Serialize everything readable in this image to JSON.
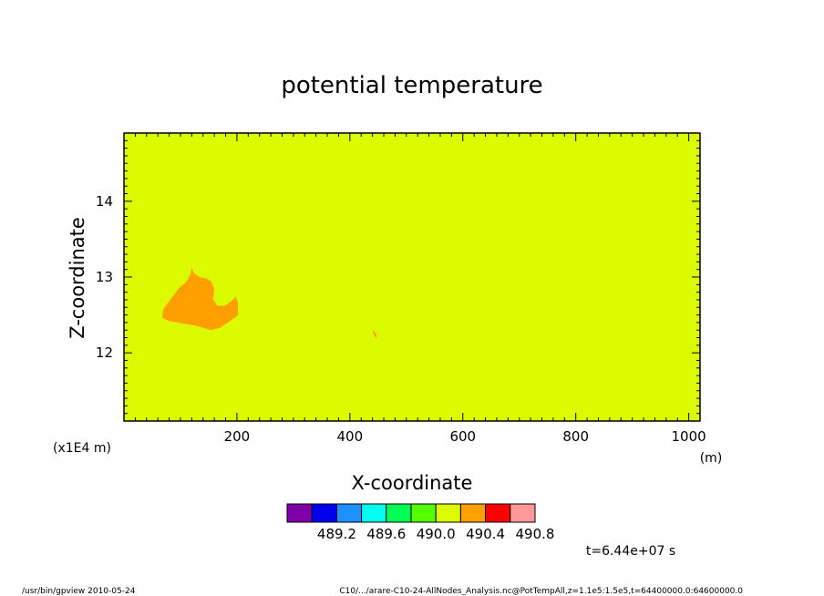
{
  "chart_data": {
    "type": "heatmap",
    "title": "potential temperature",
    "xlabel": "X-coordinate",
    "ylabel": "Z-coordinate",
    "x_unit": "(m)",
    "y_unit": "(x1E4 m)",
    "xlim": [
      0,
      1020
    ],
    "ylim": [
      11.1,
      14.9
    ],
    "x_ticks": [
      "200",
      "400",
      "600",
      "800",
      "1000"
    ],
    "x_tick_values": [
      200,
      400,
      600,
      800,
      1000
    ],
    "y_ticks": [
      "12",
      "13",
      "14"
    ],
    "y_tick_values": [
      12,
      13,
      14
    ],
    "background_level": "490.4",
    "background_color": "#dcfa00",
    "anomaly_color": "#ff9f00",
    "anomalies": [
      {
        "level": "490.4",
        "outline": [
          [
            68,
            12.5
          ],
          [
            70,
            12.58
          ],
          [
            78,
            12.66
          ],
          [
            86,
            12.74
          ],
          [
            92,
            12.8
          ],
          [
            98,
            12.86
          ],
          [
            108,
            12.92
          ],
          [
            114,
            12.98
          ],
          [
            118,
            13.05
          ],
          [
            120,
            13.12
          ],
          [
            124,
            13.05
          ],
          [
            134,
            13.0
          ],
          [
            146,
            12.98
          ],
          [
            154,
            12.95
          ],
          [
            160,
            12.85
          ],
          [
            158,
            12.7
          ],
          [
            166,
            12.62
          ],
          [
            178,
            12.62
          ],
          [
            190,
            12.68
          ],
          [
            198,
            12.74
          ],
          [
            202,
            12.66
          ],
          [
            202,
            12.5
          ],
          [
            196,
            12.46
          ],
          [
            184,
            12.4
          ],
          [
            170,
            12.33
          ],
          [
            154,
            12.3
          ],
          [
            140,
            12.33
          ],
          [
            126,
            12.36
          ],
          [
            110,
            12.38
          ],
          [
            96,
            12.4
          ],
          [
            80,
            12.42
          ],
          [
            68,
            12.46
          ]
        ]
      },
      {
        "level": "490.4",
        "outline": [
          [
            440,
            12.3
          ],
          [
            446,
            12.26
          ],
          [
            448,
            12.18
          ],
          [
            442,
            12.24
          ]
        ]
      }
    ],
    "legend": {
      "colors": [
        "#7f00aa",
        "#0000ee",
        "#1e90ff",
        "#00ffee",
        "#00ff55",
        "#55ff00",
        "#dcfa00",
        "#ff9f00",
        "#ff0000",
        "#ff9999"
      ],
      "labels": [
        "489.2",
        "489.6",
        "490.0",
        "490.4",
        "490.8"
      ]
    }
  },
  "annotations": {
    "time": "t=6.44e+07 s",
    "footer_left": "/usr/bin/gpview   2010-05-24",
    "footer_right": "C10/.../arare-C10-24-AllNodes_Analysis.nc@PotTempAll,z=1.1e5:1.5e5,t=64400000.0:64600000.0"
  }
}
